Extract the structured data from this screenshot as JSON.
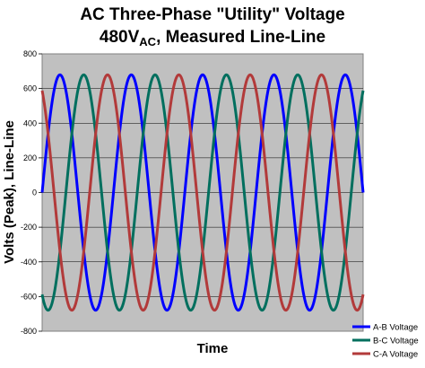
{
  "chart_data": {
    "type": "line",
    "title_line1": "AC Three-Phase \"Utility\" Voltage",
    "title_line2_main": "480V",
    "title_line2_sub": "AC",
    "title_line2_rest": ", Measured Line-Line",
    "xlabel": "Time",
    "ylabel": "Volts (Peak), Line-Line",
    "ylim": [
      -800,
      800
    ],
    "yticks": [
      "800",
      "600",
      "400",
      "200",
      "0",
      "-200",
      "-400",
      "-600",
      "-800"
    ],
    "ytick_values": [
      800,
      600,
      400,
      200,
      0,
      -200,
      -400,
      -600,
      -800
    ],
    "x_tick_labels_shown": false,
    "cycles_shown": 4.5,
    "grid": "horizontal",
    "legend_position": "bottom-right",
    "plot_background": "#c0c0c0",
    "series": [
      {
        "name": "A-B Voltage",
        "amplitude": 679,
        "phase_deg": 0,
        "color": "#0000ff"
      },
      {
        "name": "B-C Voltage",
        "amplitude": 679,
        "phase_deg": -120,
        "color": "#006f5e"
      },
      {
        "name": "C-A Voltage",
        "amplitude": 679,
        "phase_deg": 120,
        "color": "#b23a3a"
      }
    ]
  }
}
